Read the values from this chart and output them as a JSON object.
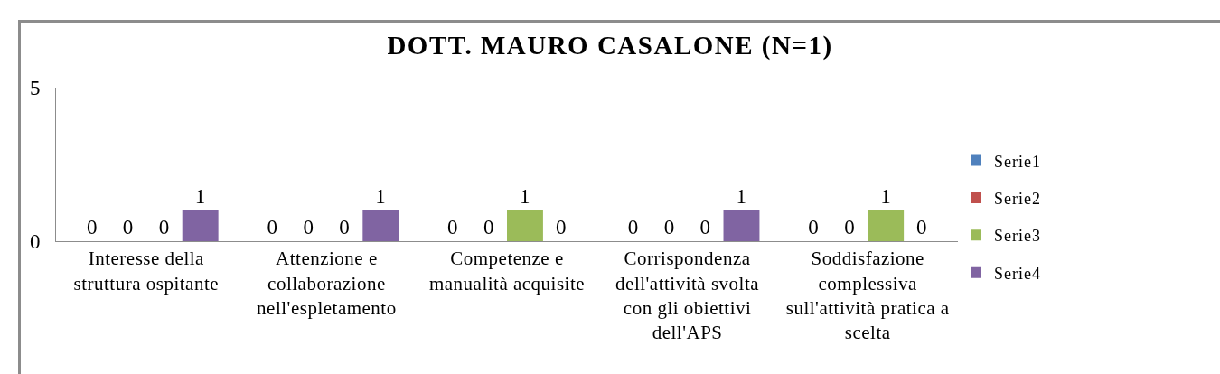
{
  "chart_data": {
    "type": "bar",
    "title": "DOTT. MAURO CASALONE (N=1)",
    "categories": [
      "Interesse della struttura ospitante",
      "Attenzione e collaborazione nell'espletamento",
      "Competenze e manualità acquisite",
      "Corrispondenza dell'attività svolta con gli obiettivi dell'APS",
      "Soddisfazione complessiva sull'attività pratica a scelta"
    ],
    "series": [
      {
        "name": "Serie1",
        "color": "#4f81bd",
        "values": [
          0,
          0,
          0,
          0,
          0
        ]
      },
      {
        "name": "Serie2",
        "color": "#c0504d",
        "values": [
          0,
          0,
          0,
          0,
          0
        ]
      },
      {
        "name": "Serie3",
        "color": "#9bbb59",
        "values": [
          0,
          0,
          1,
          0,
          1
        ]
      },
      {
        "name": "Serie4",
        "color": "#8064a2",
        "values": [
          1,
          1,
          0,
          1,
          0
        ]
      }
    ],
    "ylim": [
      0,
      5
    ],
    "yticks": [
      0,
      5
    ],
    "grid": false,
    "legend": "right",
    "data_labels": true
  }
}
